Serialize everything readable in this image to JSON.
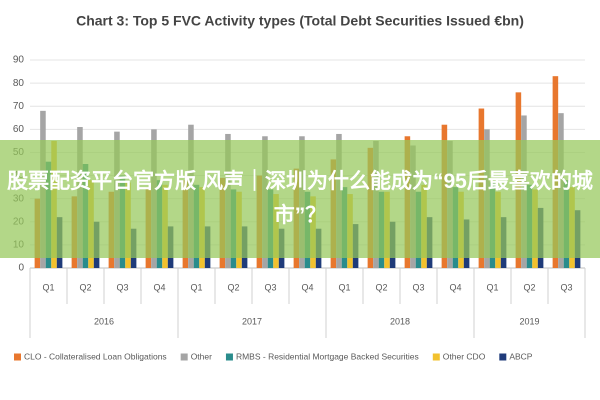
{
  "chart_data": {
    "type": "bar",
    "title": "Chart 3: Top 5 FVC Activity types (Total Debt Securities Issued €bn)",
    "category_groups": [
      {
        "name": "2016",
        "categories": [
          "Q1",
          "Q2",
          "Q3",
          "Q4"
        ]
      },
      {
        "name": "2017",
        "categories": [
          "Q1",
          "Q2",
          "Q3",
          "Q4"
        ]
      },
      {
        "name": "2018",
        "categories": [
          "Q1",
          "Q2",
          "Q3",
          "Q4"
        ]
      },
      {
        "name": "2019",
        "categories": [
          "Q1",
          "Q2",
          "Q3"
        ]
      }
    ],
    "series": [
      {
        "name": "CLO - Collateralised Loan Obligations",
        "color": "#e8772e",
        "values": [
          30,
          31,
          33,
          35,
          38,
          39,
          40,
          43,
          47,
          52,
          57,
          62,
          69,
          76,
          83
        ]
      },
      {
        "name": "Other",
        "color": "#a5a5a5",
        "values": [
          68,
          61,
          59,
          60,
          62,
          58,
          57,
          57,
          58,
          55,
          53,
          55,
          60,
          66,
          67
        ]
      },
      {
        "name": "RMBS - Residential Mortgage Backed Securities",
        "color": "#2a8c8c",
        "values": [
          46,
          45,
          40,
          38,
          36,
          34,
          34,
          33,
          35,
          33,
          33,
          35,
          37,
          36,
          38
        ]
      },
      {
        "name": "Other CDO",
        "color": "#f2c12e",
        "values": [
          55,
          38,
          37,
          36,
          35,
          33,
          32,
          31,
          32,
          33,
          36,
          33,
          33,
          34,
          35
        ]
      },
      {
        "name": "ABCP",
        "color": "#1f3b7a",
        "values": [
          22,
          20,
          17,
          18,
          18,
          18,
          17,
          17,
          19,
          20,
          22,
          21,
          22,
          26,
          25
        ]
      }
    ],
    "ylim": [
      0,
      90
    ],
    "yticks": [
      0,
      10,
      20,
      30,
      40,
      50,
      60,
      70,
      80,
      90
    ],
    "grid": true,
    "legend": "bottom"
  },
  "overlay": {
    "text": "股票配资平台官方版 风声｜深圳为什么能成为“95后最喜欢的城市”？"
  }
}
